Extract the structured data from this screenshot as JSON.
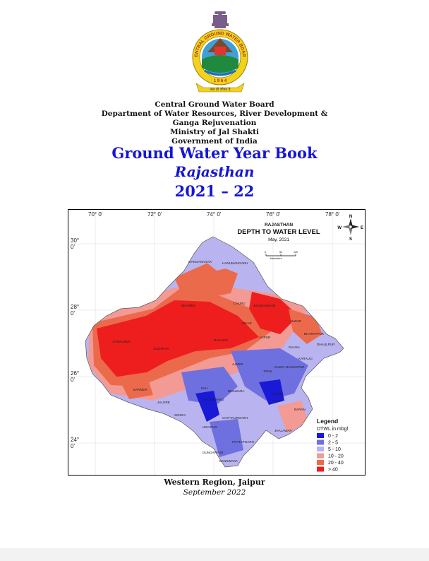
{
  "logo": {
    "ring_text": "CENTRAL GROUND WATER BOARD",
    "year_text": "1 9 6 4",
    "motto": "जल ही जीवन है"
  },
  "org": {
    "line1": "Central Ground Water Board",
    "line2": "Department of Water Resources, River Development &",
    "line3": "Ganga Rejuvenation",
    "line4": "Ministry of Jal Shakti",
    "line5": "Government of India"
  },
  "title": {
    "main": "Ground Water Year Book",
    "state": "Rajasthan",
    "year": "2021 – 22"
  },
  "map": {
    "header_state": "RAJASTHAN",
    "header_title": "DEPTH TO WATER LEVEL",
    "header_date": "May, 2021",
    "scale_unit": "kilometers",
    "scale_ticks": [
      "0",
      "50",
      "100"
    ],
    "lon_ticks": [
      "70° 0'",
      "72° 0'",
      "74° 0'",
      "76° 0'",
      "78° 0'"
    ],
    "lat_ticks": [
      [
        "30°",
        "0'"
      ],
      [
        "28°",
        "0'"
      ],
      [
        "26°",
        "0'"
      ],
      [
        "24°",
        "0'"
      ]
    ],
    "compass": {
      "n": "N",
      "s": "S",
      "e": "E",
      "w": "W"
    },
    "places": [
      "GANGANAGAR",
      "HANUMANGARH",
      "BIKANER",
      "CHURU",
      "JHUNJHUNUN",
      "ALWAR",
      "BHARATPUR",
      "SIKAR",
      "JAIPUR",
      "DAUSA",
      "DHAULPUR",
      "KARAULI",
      "NAGAUR",
      "JAISALMER",
      "JODHPUR",
      "AJMER",
      "TONK",
      "SAWAI MADHOPUR",
      "BARMER",
      "PALI",
      "BHILWARA",
      "BUNDI",
      "KOTA",
      "BARAN",
      "JALORE",
      "SIROHI",
      "RAJSAMAND",
      "CHITTAURGARH",
      "JHALAWAR",
      "UDAIPUR",
      "PRATAPGARH",
      "DUNGARPUR",
      "BANSWARA"
    ],
    "legend": {
      "title": "Legend",
      "subtitle": "DTWL in mbgl",
      "classes": [
        {
          "label": "0 - 2",
          "color": "#1a1ad6"
        },
        {
          "label": "2 - 5",
          "color": "#6f70df"
        },
        {
          "label": "5 - 10",
          "color": "#b9b4ef"
        },
        {
          "label": "10 - 20",
          "color": "#f39a94"
        },
        {
          "label": "20 - 40",
          "color": "#ec6a4c"
        },
        {
          "label": "> 40",
          "color": "#ef1e1e"
        }
      ]
    }
  },
  "footer": {
    "region": "Western Region, Jaipur",
    "date": "September 2022"
  },
  "colors": {
    "title_blue": "#1515d6",
    "logo_gold": "#f2d21b",
    "logo_green": "#1f8a3d"
  }
}
